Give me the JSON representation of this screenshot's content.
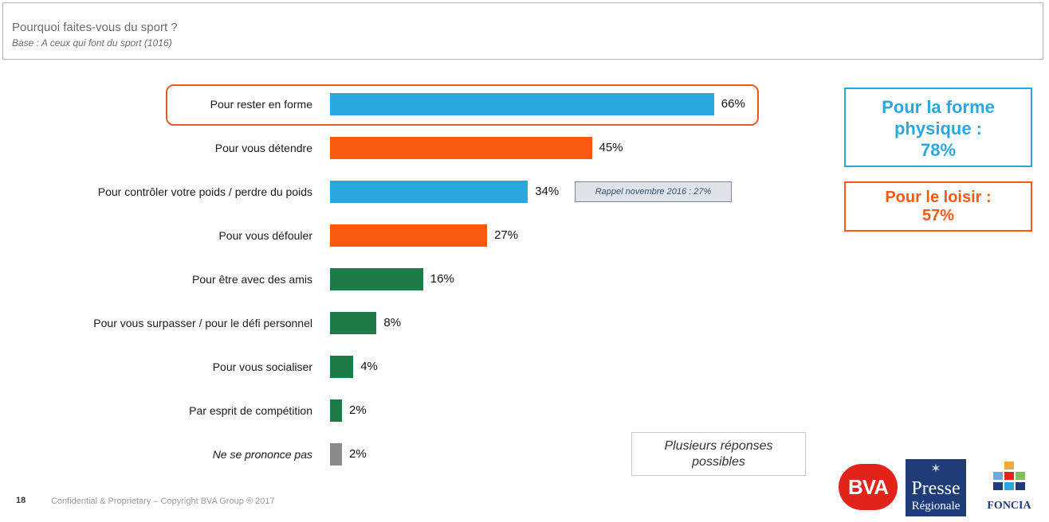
{
  "header": {
    "title": "Pourquoi faites-vous du sport ?",
    "subtitle": "Base : A ceux qui font du sport (1016)"
  },
  "chart_data": {
    "type": "bar",
    "orientation": "horizontal",
    "categories": [
      "Pour rester en forme",
      "Pour vous détendre",
      "Pour contrôler votre poids / perdre du poids",
      "Pour vous défouler",
      "Pour être avec des amis",
      "Pour vous surpasser / pour le défi personnel",
      "Pour vous socialiser",
      "Par esprit de compétition",
      "Ne se prononce pas"
    ],
    "values": [
      66,
      45,
      34,
      27,
      16,
      8,
      4,
      2,
      2
    ],
    "value_labels": [
      "66%",
      "45%",
      "34%",
      "27%",
      "16%",
      "8%",
      "4%",
      "2%",
      "2%"
    ],
    "colors": [
      "#29a8e0",
      "#fa5a0f",
      "#29a8e0",
      "#fa5a0f",
      "#1e7a46",
      "#1e7a46",
      "#1e7a46",
      "#1e7a46",
      "#8a8a8a"
    ],
    "italic_categories": [
      "Ne se prononce pas"
    ],
    "highlighted_category": "Pour rester en forme",
    "xlim": [
      0,
      100
    ],
    "unit": "%",
    "grid": false,
    "annotations": [
      "Rappel novembre 2016 : 27%"
    ]
  },
  "annotations": {
    "rappel": "Rappel novembre 2016 : 27%"
  },
  "summary_boxes": {
    "forme": {
      "lines": [
        "Pour la forme",
        "physique :",
        "78%"
      ],
      "color": "#29a8e0"
    },
    "loisir": {
      "lines": [
        "Pour le loisir :",
        "57%"
      ],
      "color": "#fa5a0f"
    }
  },
  "note": {
    "lines": [
      "Plusieurs réponses",
      "possibles"
    ]
  },
  "footer": {
    "page_number": "18",
    "copyright": "Confidential & Proprietary – Copyright BVA Group ® 2017"
  },
  "logos": {
    "bva": "BVA",
    "presse": [
      "Presse",
      "Régionale"
    ],
    "foncia": "FONCIA"
  }
}
